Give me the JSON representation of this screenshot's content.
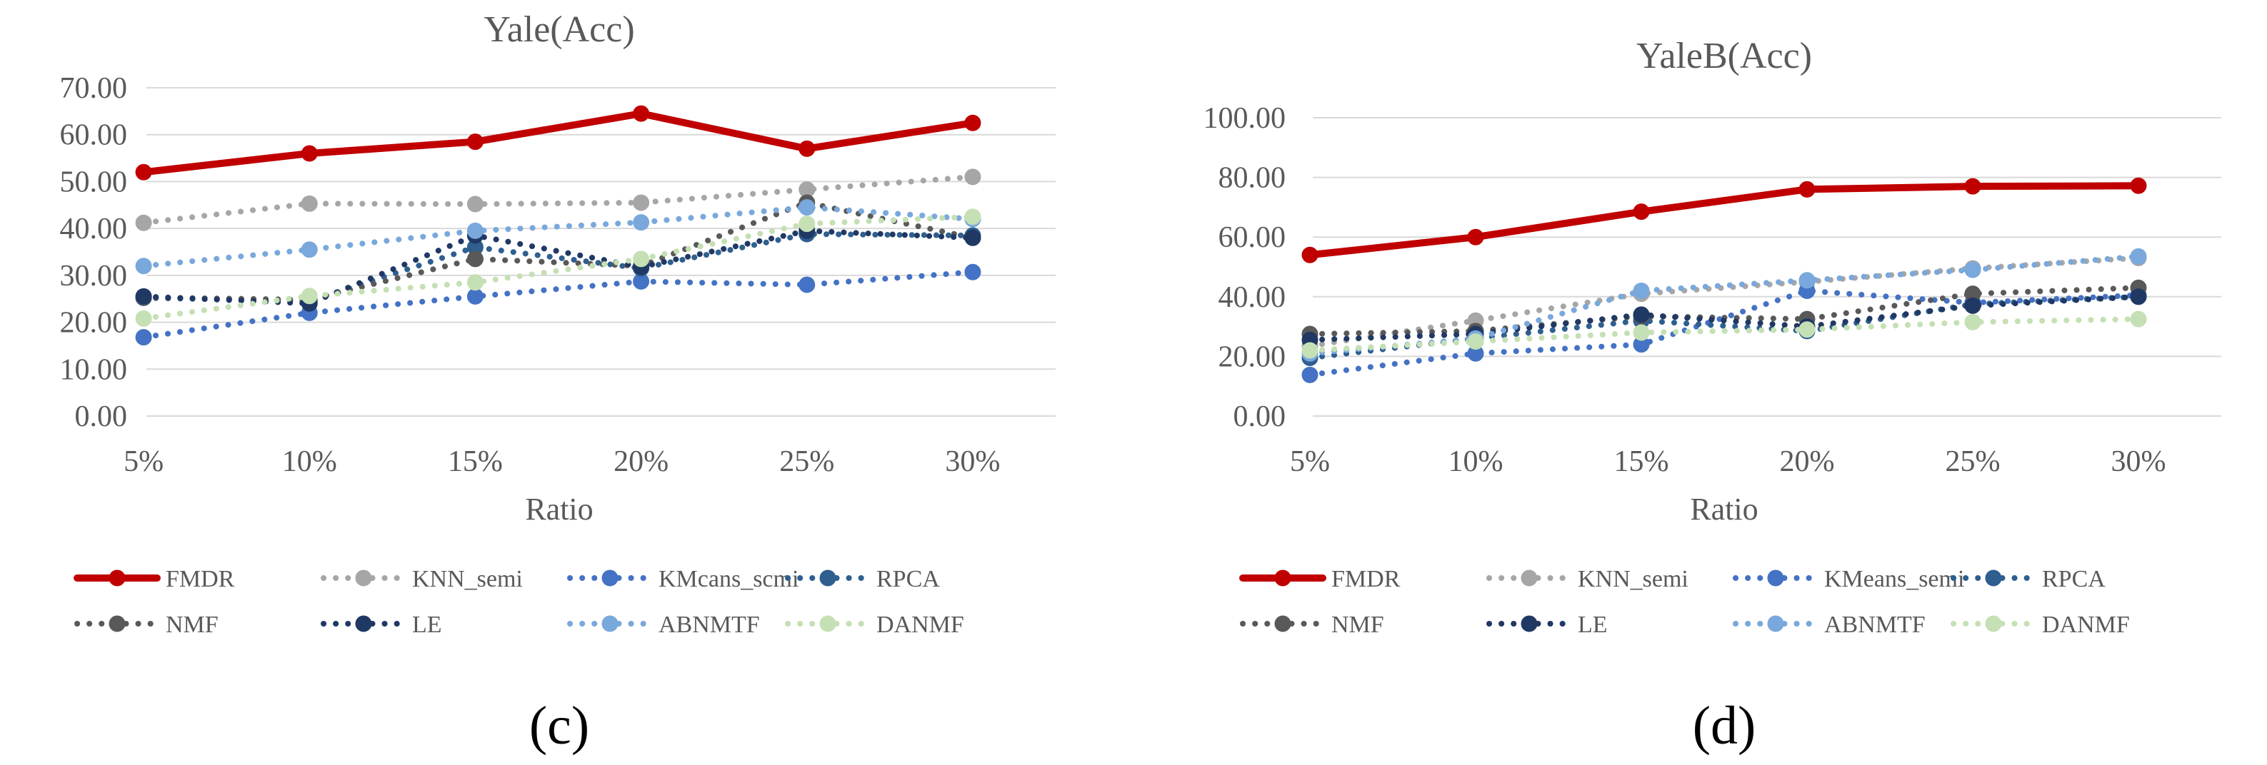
{
  "figure": {
    "captions": [
      "(c)",
      "(d)"
    ]
  },
  "legend_entries": [
    {
      "name": "FMDR",
      "color": "#C00000",
      "style": "solid"
    },
    {
      "name": "KNN_semi",
      "color": "#A6A6A6",
      "style": "dot"
    },
    {
      "name": "KMeans_semi",
      "color": "#4472C4",
      "style": "dot"
    },
    {
      "name": "RPCA",
      "color": "#2E5F8F",
      "style": "dot"
    },
    {
      "name": "NMF",
      "color": "#595959",
      "style": "dot"
    },
    {
      "name": "LE",
      "color": "#203864",
      "style": "dot"
    },
    {
      "name": "ABNMTF",
      "color": "#79A8DC",
      "style": "dot"
    },
    {
      "name": "DANMF",
      "color": "#C5E0B4",
      "style": "dot"
    }
  ],
  "chart_data": [
    {
      "type": "line",
      "title": "Yale(Acc)",
      "caption": "(c)",
      "xlabel": "Ratio",
      "ylabel": "",
      "categories": [
        "5%",
        "10%",
        "15%",
        "20%",
        "25%",
        "30%"
      ],
      "ylim": [
        0,
        70
      ],
      "yticks": [
        "0.00",
        "10.00",
        "20.00",
        "30.00",
        "40.00",
        "50.00",
        "60.00",
        "70.00"
      ],
      "grid": true,
      "legend_position": "bottom",
      "legend_labels": [
        "FMDR",
        "KNN_semi",
        "KMcans_scmi",
        "RPCA",
        "NMF",
        "LE",
        "ABNMTF",
        "DANMF"
      ],
      "series": [
        {
          "name": "FMDR",
          "values": [
            52.0,
            56.0,
            58.5,
            64.5,
            57.0,
            62.5
          ]
        },
        {
          "name": "KNN_semi",
          "values": [
            41.2,
            45.3,
            45.2,
            45.5,
            48.3,
            51.0
          ]
        },
        {
          "name": "KMeans_semi",
          "values": [
            16.8,
            22.0,
            25.5,
            28.7,
            28.0,
            30.7
          ]
        },
        {
          "name": "RPCA",
          "values": [
            25.2,
            24.5,
            36.0,
            31.5,
            38.8,
            38.5
          ]
        },
        {
          "name": "NMF",
          "values": [
            25.3,
            24.8,
            33.5,
            32.0,
            45.5,
            38.0
          ]
        },
        {
          "name": "LE",
          "values": [
            25.5,
            24.0,
            38.5,
            31.8,
            39.5,
            38.0
          ]
        },
        {
          "name": "ABNMTF",
          "values": [
            32.0,
            35.5,
            39.5,
            41.3,
            44.5,
            42.0
          ]
        },
        {
          "name": "DANMF",
          "values": [
            20.8,
            25.6,
            28.5,
            33.5,
            41.0,
            42.5
          ]
        }
      ]
    },
    {
      "type": "line",
      "title": "YaleB(Acc)",
      "caption": "(d)",
      "xlabel": "Ratio",
      "ylabel": "",
      "categories": [
        "5%",
        "10%",
        "15%",
        "20%",
        "25%",
        "30%"
      ],
      "ylim": [
        0,
        100
      ],
      "yticks": [
        "0.00",
        "20.00",
        "40.00",
        "60.00",
        "80.00",
        "100.00"
      ],
      "grid": true,
      "legend_position": "bottom",
      "legend_labels": [
        "FMDR",
        "KNN_semi",
        "KMeans_semi",
        "RPCA",
        "NMF",
        "LE",
        "ABNMTF",
        "DANMF"
      ],
      "series": [
        {
          "name": "FMDR",
          "values": [
            54.0,
            60.0,
            68.5,
            76.0,
            77.0,
            77.2
          ]
        },
        {
          "name": "KNN_semi",
          "values": [
            23.5,
            32.0,
            41.0,
            45.0,
            49.5,
            53.0
          ]
        },
        {
          "name": "KMeans_semi",
          "values": [
            13.8,
            21.0,
            24.0,
            42.0,
            38.0,
            40.5
          ]
        },
        {
          "name": "RPCA",
          "values": [
            19.5,
            26.0,
            32.0,
            28.5,
            37.5,
            40.0
          ]
        },
        {
          "name": "NMF",
          "values": [
            27.5,
            28.5,
            33.5,
            32.5,
            41.0,
            43.0
          ]
        },
        {
          "name": "LE",
          "values": [
            25.5,
            27.5,
            34.0,
            30.0,
            37.0,
            40.0
          ]
        },
        {
          "name": "ABNMTF",
          "values": [
            21.0,
            26.0,
            42.0,
            45.5,
            49.0,
            53.5
          ]
        },
        {
          "name": "DANMF",
          "values": [
            22.0,
            25.0,
            28.0,
            29.0,
            31.5,
            32.5
          ]
        }
      ]
    }
  ]
}
